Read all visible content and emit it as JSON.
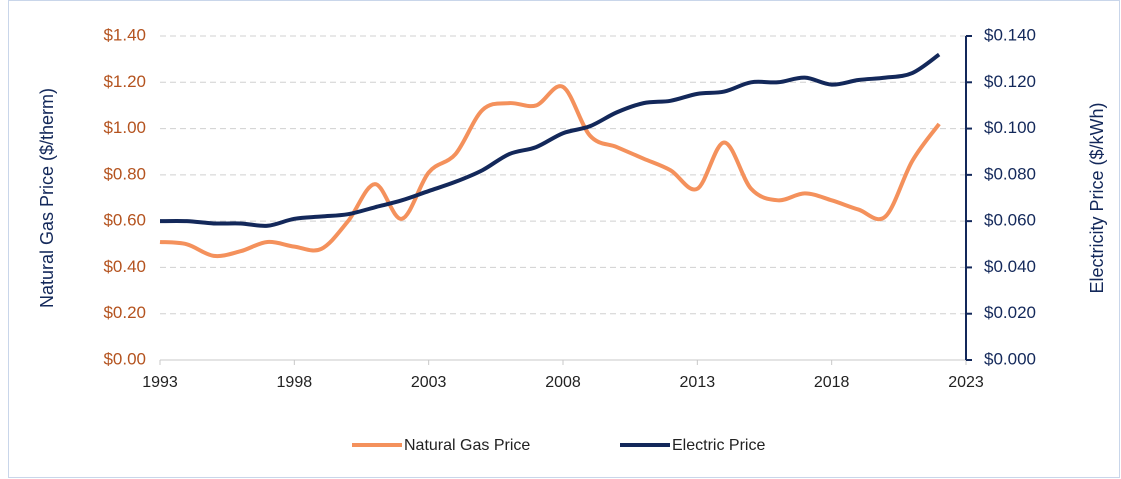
{
  "chart_data": {
    "type": "line",
    "x": [
      1993,
      1994,
      1995,
      1996,
      1997,
      1998,
      1999,
      2000,
      2001,
      2002,
      2003,
      2004,
      2005,
      2006,
      2007,
      2008,
      2009,
      2010,
      2011,
      2012,
      2013,
      2014,
      2015,
      2016,
      2017,
      2018,
      2019,
      2020,
      2021,
      2022
    ],
    "series": [
      {
        "name": "Natural Gas Price",
        "color": "#f4915c",
        "axis": "y",
        "values": [
          0.51,
          0.5,
          0.45,
          0.47,
          0.51,
          0.49,
          0.48,
          0.6,
          0.76,
          0.61,
          0.81,
          0.89,
          1.08,
          1.11,
          1.1,
          1.18,
          0.97,
          0.92,
          0.87,
          0.82,
          0.74,
          0.94,
          0.74,
          0.69,
          0.72,
          0.69,
          0.65,
          0.62,
          0.86,
          1.02
        ]
      },
      {
        "name": "Electric Price",
        "color": "#13285a",
        "axis": "y2",
        "values": [
          0.06,
          0.06,
          0.059,
          0.059,
          0.058,
          0.061,
          0.062,
          0.063,
          0.066,
          0.069,
          0.073,
          0.077,
          0.082,
          0.089,
          0.092,
          0.098,
          0.101,
          0.107,
          0.111,
          0.112,
          0.115,
          0.116,
          0.12,
          0.12,
          0.122,
          0.119,
          0.121,
          0.122,
          0.124,
          0.132
        ]
      }
    ],
    "ylabel": "Natural Gas Price ($/therm)",
    "y2label": "Electricity Price ($/kWh)",
    "xlim": [
      1993,
      2023
    ],
    "xticks": [
      1993,
      1998,
      2003,
      2008,
      2013,
      2018,
      2023
    ],
    "ylim": [
      0,
      1.4
    ],
    "yticks": [
      {
        "value": 0,
        "label": "$0.00"
      },
      {
        "value": 0.2,
        "label": "$0.20"
      },
      {
        "value": 0.4,
        "label": "$0.40"
      },
      {
        "value": 0.6,
        "label": "$0.60"
      },
      {
        "value": 0.8,
        "label": "$0.80"
      },
      {
        "value": 1.0,
        "label": "$1.00"
      },
      {
        "value": 1.2,
        "label": "$1.20"
      },
      {
        "value": 1.4,
        "label": "$1.40"
      }
    ],
    "y2lim": [
      0,
      0.14
    ],
    "y2ticks": [
      {
        "value": 0,
        "label": "$0.000"
      },
      {
        "value": 0.02,
        "label": "$0.020"
      },
      {
        "value": 0.04,
        "label": "$0.040"
      },
      {
        "value": 0.06,
        "label": "$0.060"
      },
      {
        "value": 0.08,
        "label": "$0.080"
      },
      {
        "value": 0.1,
        "label": "$0.100"
      },
      {
        "value": 0.12,
        "label": "$0.120"
      },
      {
        "value": 0.14,
        "label": "$0.140"
      }
    ],
    "grid": true,
    "legend": "bottom"
  }
}
